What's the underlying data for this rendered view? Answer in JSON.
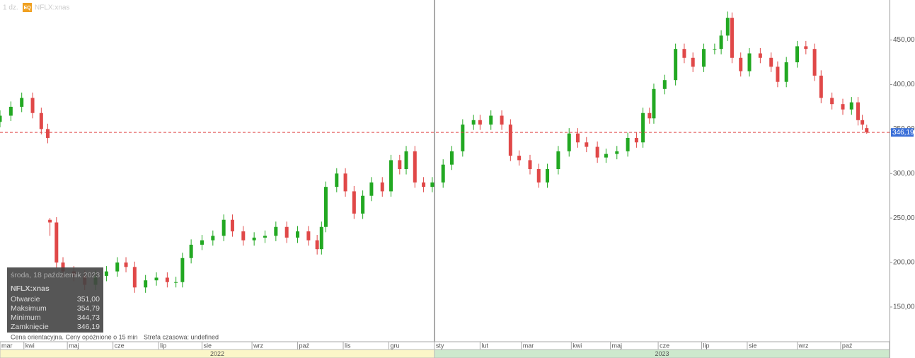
{
  "header": {
    "interval": "1 dz.",
    "badge": "EQ",
    "symbol": "NFLX:xnas"
  },
  "chart_data": {
    "type": "candlestick",
    "up_color": "#22a822",
    "down_color": "#e04848",
    "xlim": [
      0,
      409.5
    ],
    "ylim": [
      111,
      495
    ],
    "yticks": [
      {
        "value": 150,
        "label": "150,00"
      },
      {
        "value": 200,
        "label": "200,00"
      },
      {
        "value": 250,
        "label": "250,00"
      },
      {
        "value": 300,
        "label": "300,00"
      },
      {
        "value": 350,
        "label": "350,00"
      },
      {
        "value": 400,
        "label": "400,00"
      },
      {
        "value": 450,
        "label": "450,00"
      }
    ],
    "xticks": [
      {
        "value": 0,
        "label": "mar"
      },
      {
        "value": 11,
        "label": "kwi"
      },
      {
        "value": 31,
        "label": "maj"
      },
      {
        "value": 52,
        "label": "cze"
      },
      {
        "value": 73,
        "label": "lip"
      },
      {
        "value": 93,
        "label": "sie"
      },
      {
        "value": 116,
        "label": "wrz"
      },
      {
        "value": 137,
        "label": "paź"
      },
      {
        "value": 158,
        "label": "lis"
      },
      {
        "value": 179,
        "label": "gru"
      },
      {
        "value": 200,
        "label": "sty"
      },
      {
        "value": 221,
        "label": "lut"
      },
      {
        "value": 240,
        "label": "mar"
      },
      {
        "value": 263,
        "label": "kwi"
      },
      {
        "value": 281,
        "label": "maj"
      },
      {
        "value": 303,
        "label": "cze"
      },
      {
        "value": 323,
        "label": "lip"
      },
      {
        "value": 344,
        "label": "sie"
      },
      {
        "value": 367,
        "label": "wrz"
      },
      {
        "value": 387,
        "label": "paź"
      }
    ],
    "years": [
      {
        "label": "2022",
        "start": 0,
        "end": 200,
        "color": "#fbf6c8"
      },
      {
        "label": "2023",
        "start": 200,
        "end": 409.5,
        "color": "#cde9cd"
      }
    ],
    "last_price": {
      "value": 346.19,
      "label": "346,19"
    },
    "x": [
      0,
      5,
      10,
      15,
      19,
      22,
      23,
      26,
      29,
      34,
      39,
      44,
      49,
      54,
      58,
      62,
      67,
      72,
      77,
      81,
      84,
      88,
      93,
      98,
      103,
      107,
      112,
      117,
      122,
      127,
      132,
      137,
      142,
      146,
      148,
      150,
      155,
      159,
      163,
      167,
      171,
      176,
      180,
      184,
      187,
      191,
      195,
      199,
      204,
      208,
      213,
      218,
      221,
      226,
      231,
      235,
      239,
      244,
      248,
      252,
      257,
      262,
      266,
      270,
      275,
      279,
      284,
      289,
      293,
      296,
      299,
      301,
      306,
      311,
      315,
      319,
      324,
      329,
      332,
      335,
      337,
      341,
      345,
      350,
      355,
      358,
      362,
      367,
      371,
      375,
      378,
      383,
      388,
      392,
      395,
      397,
      399
    ],
    "open": [
      358,
      365,
      375,
      385,
      368,
      350,
      248,
      245,
      200,
      190,
      185,
      175,
      185,
      190,
      200,
      195,
      172,
      180,
      183,
      178,
      178,
      205,
      220,
      225,
      230,
      248,
      235,
      225,
      228,
      230,
      240,
      228,
      235,
      225,
      215,
      240,
      285,
      300,
      280,
      255,
      275,
      290,
      280,
      315,
      305,
      325,
      290,
      285,
      290,
      310,
      325,
      355,
      360,
      355,
      365,
      355,
      320,
      315,
      305,
      290,
      305,
      325,
      345,
      335,
      330,
      318,
      322,
      325,
      340,
      335,
      368,
      362,
      395,
      405,
      440,
      430,
      420,
      440,
      440,
      455,
      475,
      430,
      415,
      435,
      430,
      420,
      403,
      425,
      443,
      440,
      410,
      385,
      378,
      372,
      380,
      360,
      351
    ],
    "high": [
      371,
      381,
      391,
      391,
      374,
      356,
      250,
      251,
      206,
      196,
      191,
      191,
      196,
      206,
      206,
      201,
      186,
      189,
      189,
      184,
      211,
      226,
      231,
      236,
      254,
      254,
      241,
      234,
      236,
      246,
      246,
      241,
      241,
      231,
      246,
      291,
      306,
      306,
      286,
      281,
      296,
      296,
      321,
      321,
      331,
      331,
      296,
      296,
      316,
      331,
      361,
      366,
      366,
      371,
      371,
      361,
      326,
      321,
      311,
      311,
      331,
      351,
      351,
      341,
      336,
      328,
      331,
      346,
      346,
      374,
      374,
      401,
      411,
      446,
      446,
      436,
      446,
      446,
      461,
      482,
      481,
      436,
      441,
      441,
      436,
      426,
      431,
      449,
      449,
      446,
      416,
      391,
      384,
      386,
      386,
      366,
      354.79
    ],
    "low": [
      352,
      359,
      369,
      362,
      344,
      334,
      230,
      194,
      184,
      179,
      169,
      169,
      179,
      184,
      189,
      166,
      166,
      174,
      172,
      172,
      172,
      199,
      214,
      219,
      224,
      229,
      219,
      219,
      222,
      224,
      222,
      222,
      219,
      209,
      209,
      234,
      279,
      274,
      249,
      249,
      269,
      274,
      274,
      299,
      299,
      284,
      279,
      279,
      284,
      304,
      319,
      349,
      349,
      349,
      349,
      314,
      309,
      299,
      284,
      284,
      299,
      319,
      329,
      324,
      312,
      312,
      316,
      319,
      329,
      329,
      356,
      356,
      389,
      399,
      424,
      414,
      414,
      434,
      434,
      449,
      424,
      409,
      409,
      424,
      414,
      397,
      397,
      419,
      434,
      404,
      379,
      372,
      366,
      366,
      354,
      349,
      344.73
    ],
    "close": [
      365,
      375,
      385,
      368,
      350,
      340,
      245,
      200,
      190,
      185,
      175,
      185,
      190,
      200,
      195,
      172,
      180,
      183,
      178,
      178,
      205,
      220,
      225,
      230,
      248,
      235,
      225,
      228,
      230,
      240,
      228,
      235,
      225,
      215,
      240,
      285,
      300,
      280,
      255,
      275,
      290,
      280,
      315,
      305,
      325,
      290,
      285,
      290,
      310,
      325,
      355,
      360,
      355,
      365,
      355,
      320,
      315,
      305,
      290,
      305,
      325,
      345,
      335,
      330,
      318,
      322,
      325,
      340,
      335,
      368,
      362,
      395,
      405,
      440,
      430,
      420,
      440,
      440,
      455,
      475,
      430,
      415,
      435,
      430,
      420,
      403,
      425,
      443,
      440,
      410,
      385,
      378,
      372,
      380,
      360,
      355,
      346.19
    ]
  },
  "tooltip": {
    "date": "środa, 18 październik 2023",
    "symbol": "NFLX:xnas",
    "rows": [
      [
        "Otwarcie",
        "351,00"
      ],
      [
        "Maksimum",
        "354,79"
      ],
      [
        "Minimum",
        "344,73"
      ],
      [
        "Zamknięcie",
        "346,19"
      ]
    ]
  },
  "footer": {
    "notice": "Cena orientacyjna. Ceny opóźnione o 15 min",
    "timezone": "Strefa czasowa: undefined"
  }
}
